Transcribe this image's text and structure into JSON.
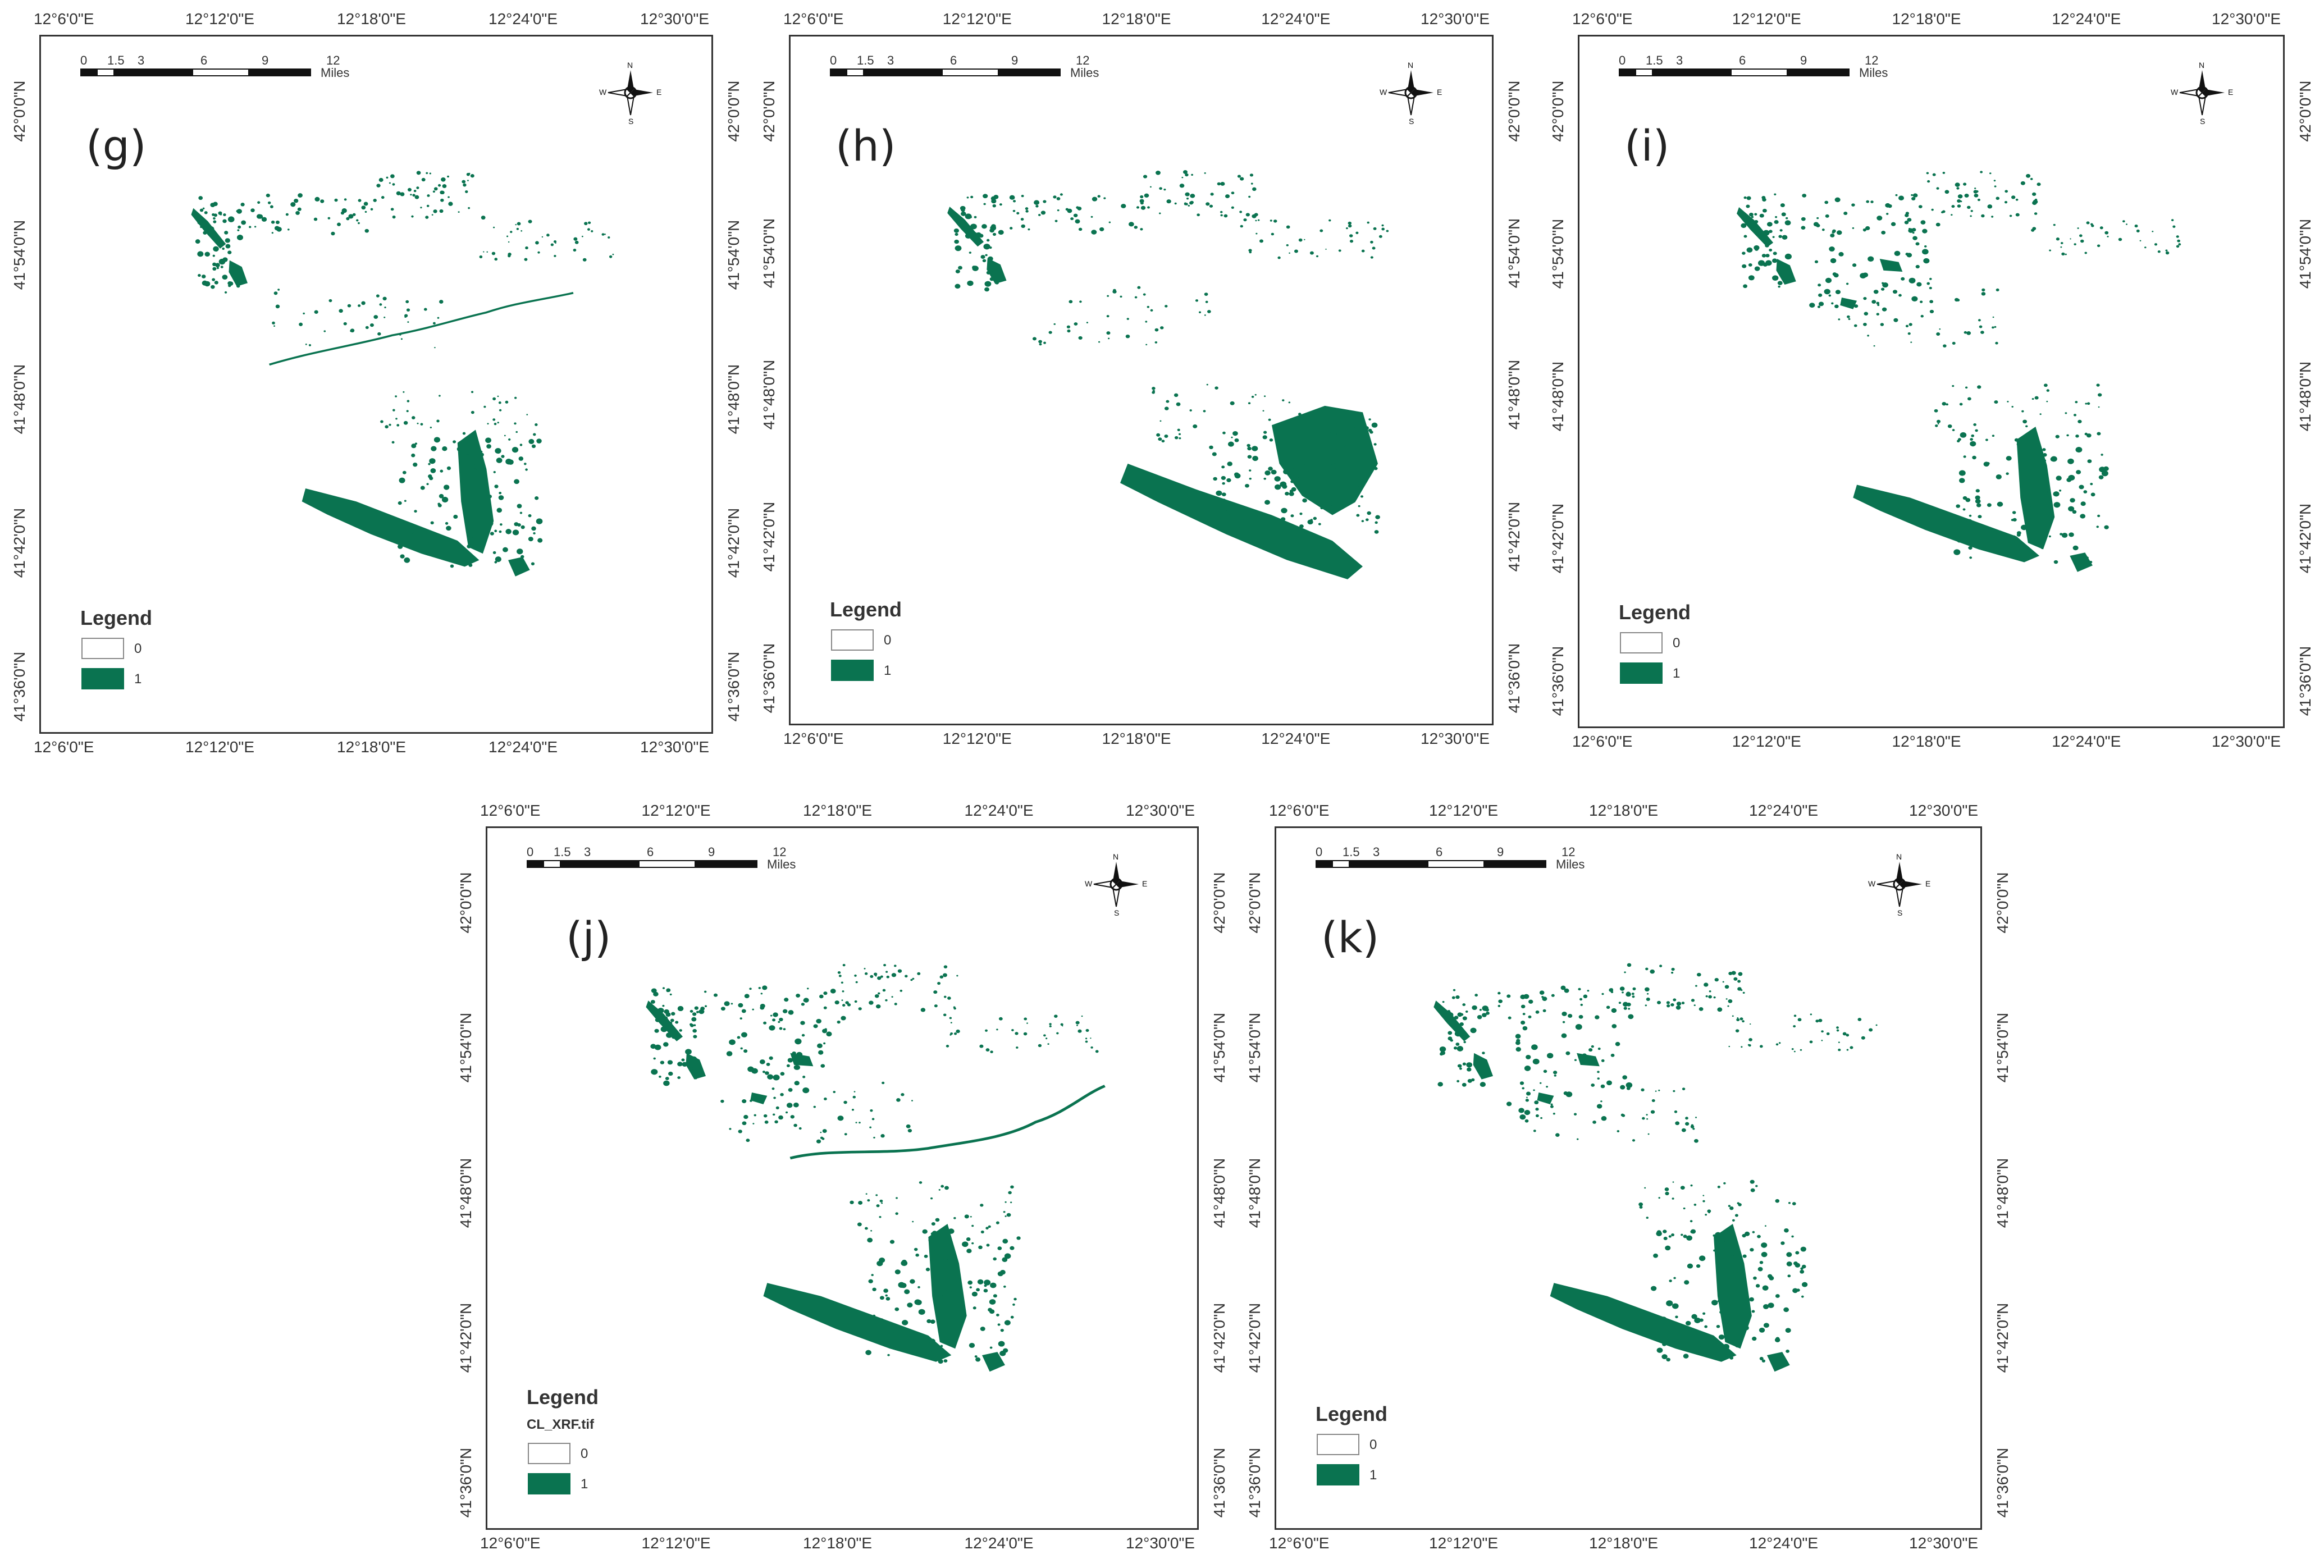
{
  "figure": {
    "colors": {
      "presence": "#0a7350",
      "absence": "#ffffff",
      "frame": "#333333"
    },
    "longitude_ticks": [
      "12°6'0\"E",
      "12°12'0\"E",
      "12°18'0\"E",
      "12°24'0\"E",
      "12°30'0\"E"
    ],
    "latitude_ticks": [
      "42°0'0\"N",
      "41°54'0\"N",
      "41°48'0\"N",
      "41°42'0\"N",
      "41°36'0\"N"
    ],
    "scale_bar": {
      "ticks": [
        "0",
        "1.5",
        "3",
        "6",
        "9",
        "12"
      ],
      "unit": "Miles"
    },
    "north_arrow": {
      "n": "N",
      "s": "S",
      "e": "E",
      "w": "W"
    },
    "legend_title": "Legend",
    "panels": [
      {
        "label": "(g)",
        "legend_sub": "",
        "classes": [
          "0",
          "1"
        ]
      },
      {
        "label": "(h)",
        "legend_sub": "",
        "classes": [
          "0",
          "1"
        ]
      },
      {
        "label": "(i)",
        "legend_sub": "",
        "classes": [
          "0",
          "1"
        ]
      },
      {
        "label": "(j)",
        "legend_sub": "CL_XRF.tif",
        "classes": [
          "0",
          "1"
        ]
      },
      {
        "label": "(k)",
        "legend_sub": "",
        "classes": [
          "0",
          "1"
        ]
      }
    ]
  }
}
